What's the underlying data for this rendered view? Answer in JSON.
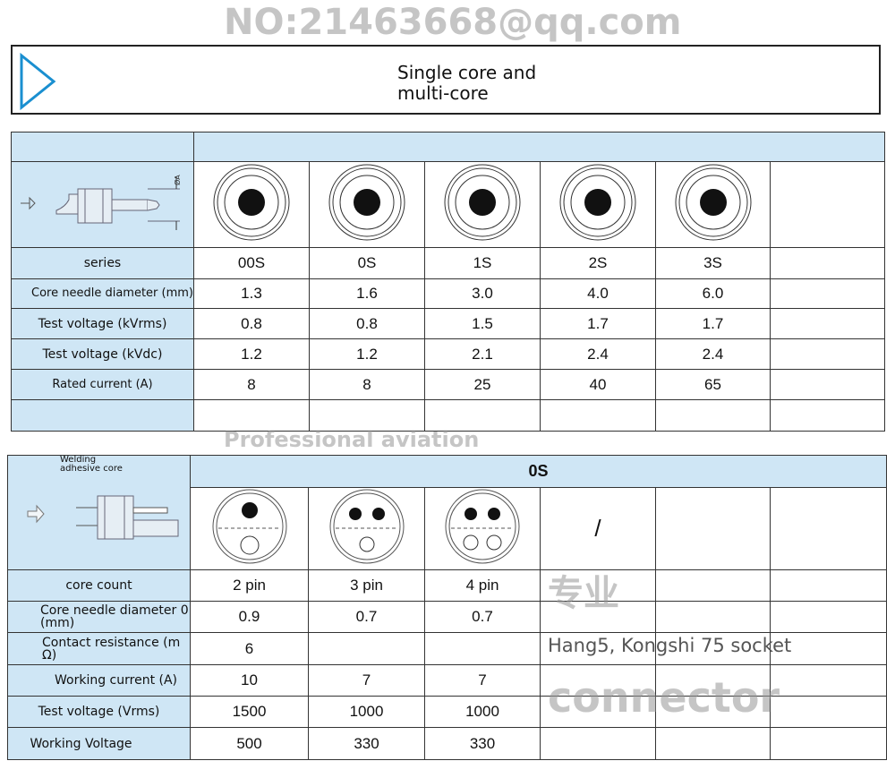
{
  "title": {
    "line1": "Single core and",
    "line2": "multi-core",
    "icon": "play-triangle-icon",
    "accent": "#1a8fd0"
  },
  "single_core": {
    "labels": [
      "series",
      "Core needle diameter (mm)",
      "Test voltage (kVrms)",
      "Test voltage (kVdc)",
      "Rated current (A)"
    ],
    "diagram_label": "ØA",
    "columns": [
      {
        "series": "00S",
        "diameter": "1.3",
        "kvrms": "0.8",
        "kvdc": "1.2",
        "current": "8"
      },
      {
        "series": "0S",
        "diameter": "1.6",
        "kvrms": "0.8",
        "kvdc": "1.2",
        "current": "8"
      },
      {
        "series": "1S",
        "diameter": "3.0",
        "kvrms": "1.5",
        "kvdc": "2.1",
        "current": "25"
      },
      {
        "series": "2S",
        "diameter": "4.0",
        "kvrms": "1.7",
        "kvdc": "2.4",
        "current": "40"
      },
      {
        "series": "3S",
        "diameter": "6.0",
        "kvrms": "1.7",
        "kvdc": "2.4",
        "current": "65"
      }
    ]
  },
  "multi_core": {
    "header_left": "Welding adhesive core",
    "header": "0S",
    "labels": [
      "core count",
      "Core needle diameter 0 (mm)",
      "Contact resistance (m Ω)",
      "Working current (A)",
      "Test voltage (Vrms)",
      "Working Voltage"
    ],
    "columns": [
      {
        "count": "2 pin",
        "diameter": "0.9",
        "resistance": "6",
        "current": "10",
        "vrms": "1500",
        "voltage": "500"
      },
      {
        "count": "3 pin",
        "diameter": "0.7",
        "resistance": "",
        "current": "7",
        "vrms": "1000",
        "voltage": "330"
      },
      {
        "count": "4 pin",
        "diameter": "0.7",
        "resistance": "",
        "current": "7",
        "vrms": "1000",
        "voltage": "330"
      }
    ],
    "slash": "/"
  },
  "watermark": {
    "line1": "NO:21463668@qq.com",
    "line2": "专业",
    "line3": "Professional aviation",
    "line4": "connector",
    "overlay": "Hang5, Kongshi 75 socket"
  }
}
